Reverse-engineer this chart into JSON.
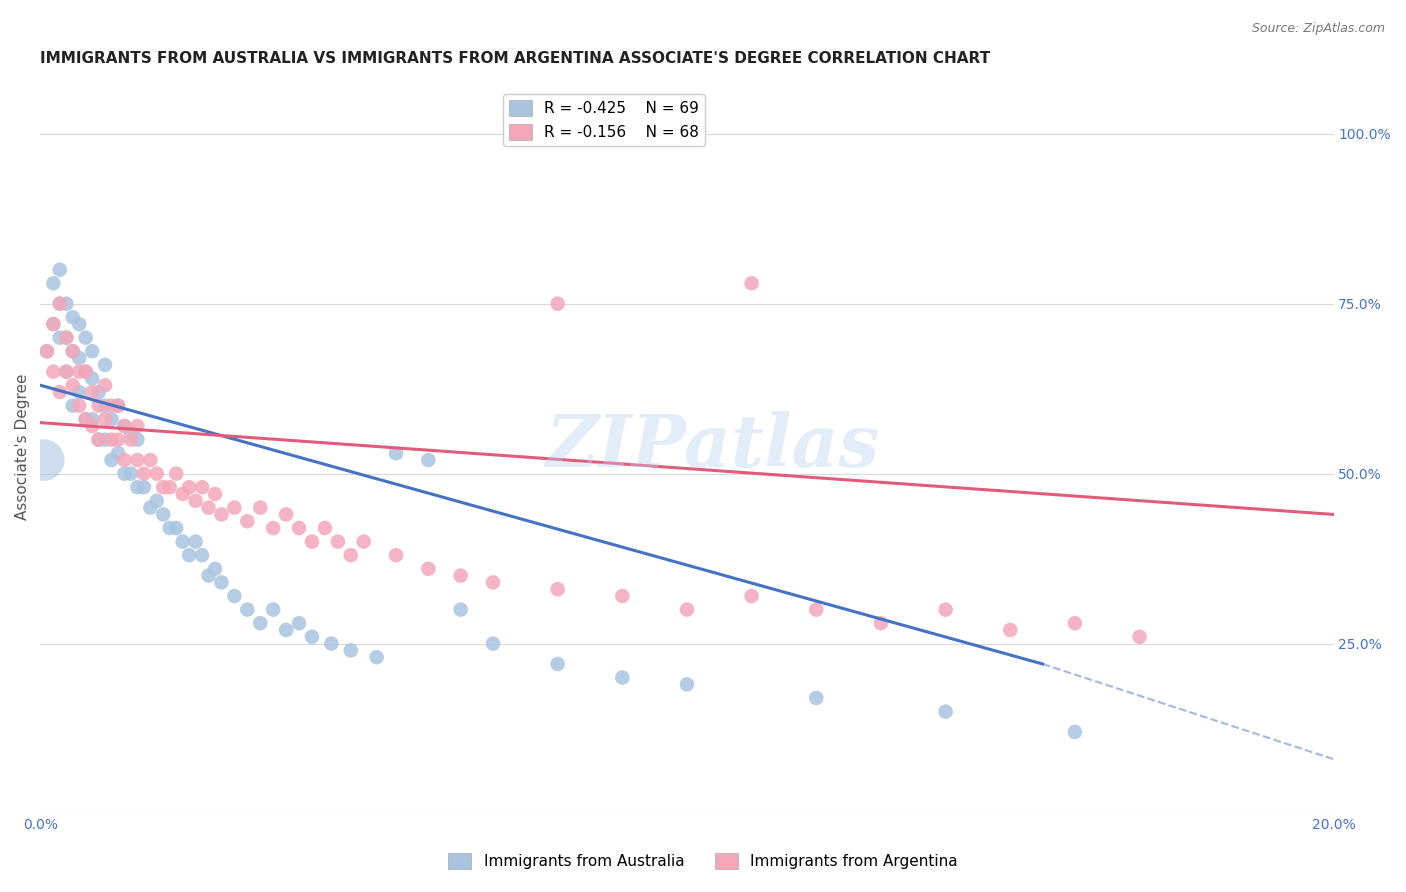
{
  "title": "IMMIGRANTS FROM AUSTRALIA VS IMMIGRANTS FROM ARGENTINA ASSOCIATE'S DEGREE CORRELATION CHART",
  "source": "Source: ZipAtlas.com",
  "ylabel": "Associate's Degree",
  "xlim": [
    0.0,
    0.2
  ],
  "ylim": [
    0.0,
    1.05
  ],
  "legend_r_australia": "-0.425",
  "legend_n_australia": "69",
  "legend_r_argentina": "-0.156",
  "legend_n_argentina": "68",
  "color_australia": "#a8c4e0",
  "color_argentina": "#f4a7b9",
  "line_color_australia": "#4472c4",
  "line_color_argentina": "#e05c7a",
  "background_color": "#ffffff",
  "watermark": "ZIPatlas",
  "australia_x": [
    0.001,
    0.002,
    0.002,
    0.003,
    0.003,
    0.003,
    0.004,
    0.004,
    0.004,
    0.005,
    0.005,
    0.005,
    0.006,
    0.006,
    0.006,
    0.007,
    0.007,
    0.007,
    0.008,
    0.008,
    0.008,
    0.009,
    0.009,
    0.01,
    0.01,
    0.01,
    0.011,
    0.011,
    0.012,
    0.012,
    0.013,
    0.013,
    0.014,
    0.014,
    0.015,
    0.015,
    0.016,
    0.017,
    0.018,
    0.019,
    0.02,
    0.021,
    0.022,
    0.023,
    0.024,
    0.025,
    0.026,
    0.027,
    0.028,
    0.03,
    0.032,
    0.034,
    0.036,
    0.038,
    0.04,
    0.042,
    0.045,
    0.048,
    0.052,
    0.055,
    0.06,
    0.065,
    0.07,
    0.08,
    0.09,
    0.1,
    0.12,
    0.14,
    0.16
  ],
  "australia_y": [
    0.68,
    0.72,
    0.78,
    0.7,
    0.75,
    0.8,
    0.65,
    0.7,
    0.75,
    0.6,
    0.68,
    0.73,
    0.62,
    0.67,
    0.72,
    0.58,
    0.65,
    0.7,
    0.58,
    0.64,
    0.68,
    0.55,
    0.62,
    0.55,
    0.6,
    0.66,
    0.52,
    0.58,
    0.53,
    0.6,
    0.5,
    0.57,
    0.5,
    0.56,
    0.48,
    0.55,
    0.48,
    0.45,
    0.46,
    0.44,
    0.42,
    0.42,
    0.4,
    0.38,
    0.4,
    0.38,
    0.35,
    0.36,
    0.34,
    0.32,
    0.3,
    0.28,
    0.3,
    0.27,
    0.28,
    0.26,
    0.25,
    0.24,
    0.23,
    0.53,
    0.52,
    0.3,
    0.25,
    0.22,
    0.2,
    0.19,
    0.17,
    0.15,
    0.12
  ],
  "argentina_x": [
    0.001,
    0.002,
    0.002,
    0.003,
    0.003,
    0.004,
    0.004,
    0.005,
    0.005,
    0.006,
    0.006,
    0.007,
    0.007,
    0.008,
    0.008,
    0.009,
    0.009,
    0.01,
    0.01,
    0.011,
    0.011,
    0.012,
    0.012,
    0.013,
    0.013,
    0.014,
    0.015,
    0.015,
    0.016,
    0.017,
    0.018,
    0.019,
    0.02,
    0.021,
    0.022,
    0.023,
    0.024,
    0.025,
    0.026,
    0.027,
    0.028,
    0.03,
    0.032,
    0.034,
    0.036,
    0.038,
    0.04,
    0.042,
    0.044,
    0.046,
    0.048,
    0.05,
    0.055,
    0.06,
    0.065,
    0.07,
    0.08,
    0.09,
    0.1,
    0.11,
    0.12,
    0.13,
    0.14,
    0.15,
    0.16,
    0.17,
    0.08,
    0.11
  ],
  "argentina_y": [
    0.68,
    0.72,
    0.65,
    0.75,
    0.62,
    0.7,
    0.65,
    0.68,
    0.63,
    0.65,
    0.6,
    0.65,
    0.58,
    0.62,
    0.57,
    0.6,
    0.55,
    0.58,
    0.63,
    0.55,
    0.6,
    0.55,
    0.6,
    0.52,
    0.57,
    0.55,
    0.52,
    0.57,
    0.5,
    0.52,
    0.5,
    0.48,
    0.48,
    0.5,
    0.47,
    0.48,
    0.46,
    0.48,
    0.45,
    0.47,
    0.44,
    0.45,
    0.43,
    0.45,
    0.42,
    0.44,
    0.42,
    0.4,
    0.42,
    0.4,
    0.38,
    0.4,
    0.38,
    0.36,
    0.35,
    0.34,
    0.33,
    0.32,
    0.3,
    0.32,
    0.3,
    0.28,
    0.3,
    0.27,
    0.28,
    0.26,
    0.75,
    0.78
  ],
  "aus_line_x0": 0.0,
  "aus_line_y0": 0.63,
  "aus_line_x1": 0.155,
  "aus_line_y1": 0.22,
  "aus_line_x1_dash": 0.155,
  "aus_line_x2_dash": 0.2,
  "aus_line_y2_dash": 0.08,
  "arg_line_x0": 0.0,
  "arg_line_y0": 0.575,
  "arg_line_x1": 0.2,
  "arg_line_y1": 0.44,
  "title_fontsize": 11,
  "axis_label_fontsize": 11,
  "tick_fontsize": 10,
  "legend_fontsize": 11
}
